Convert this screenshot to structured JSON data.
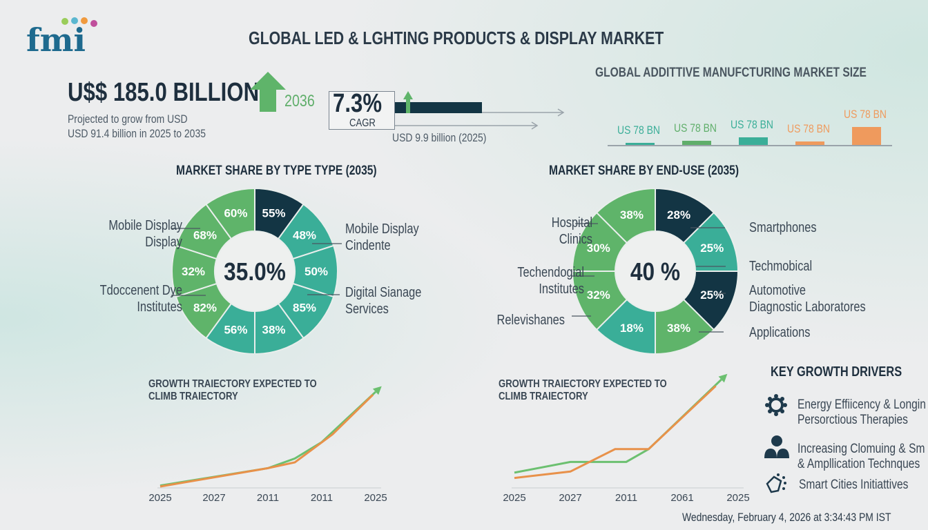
{
  "logo": {
    "text": "fmi",
    "dot_colors": [
      "#9acd5a",
      "#5bb7d0",
      "#f09a3e",
      "#c04f9c"
    ]
  },
  "header": {
    "title": "GLOBAL LED & LGHTING PRODUCTS & DISPLAY MARKET"
  },
  "headline": {
    "value": "U$$ 185.0 BILLION",
    "year": "2036",
    "projection": [
      "Projected to grow from USD",
      "USD 91.4 billion in 2025 to 2035"
    ]
  },
  "cagr": {
    "value": "7.3%",
    "label": "CAGR",
    "base": "USD 9.9 billion (2025)"
  },
  "market_size": {
    "title": "GLOBAL ADDITTIVE MANUFCTURING MARKET SIZE",
    "bars": [
      {
        "label": "US 78 BN",
        "color": "#3aae98",
        "level": 0.12
      },
      {
        "label": "US 78 BN",
        "color": "#5fae6a",
        "level": 0.2
      },
      {
        "label": "US 78 BN",
        "color": "#3aae98",
        "level": 0.38
      },
      {
        "label": "US 78 BN",
        "color": "#ef9a5d",
        "level": 0.18
      },
      {
        "label": "US 78 BN",
        "color": "#ef9a5d",
        "level": 0.92
      }
    ]
  },
  "colors": {
    "dark": "#133544",
    "green": "#5fb46a",
    "teal": "#3aae98",
    "orange": "#e8914a",
    "text": "#1e2f3e"
  },
  "chart_data": [
    {
      "type": "pie",
      "title": "MARKET SHARE BY TYPE TYPE (2035)",
      "center": "35.0%",
      "slices": [
        {
          "label": "55%",
          "color": "dark"
        },
        {
          "label": "48%",
          "color": "teal"
        },
        {
          "label": "50%",
          "color": "teal"
        },
        {
          "label": "85%",
          "color": "teal"
        },
        {
          "label": "38%",
          "color": "teal"
        },
        {
          "label": "56%",
          "color": "teal"
        },
        {
          "label": "82%",
          "color": "green"
        },
        {
          "label": "32%",
          "color": "green"
        },
        {
          "label": "68%",
          "color": "green"
        },
        {
          "label": "60%",
          "color": "green"
        }
      ],
      "callouts": [
        "Mobile Display\nDisplay",
        "Tdoccenent Dye\nInstitutes",
        "Mobile Display\nCindente",
        "Digital Sianage\nServices"
      ]
    },
    {
      "type": "pie",
      "title": "MARKET SHARE BY END-USE (2035)",
      "center": "40 %",
      "slices": [
        {
          "label": "28%",
          "color": "dark"
        },
        {
          "label": "25%",
          "color": "teal"
        },
        {
          "label": "25%",
          "color": "dark"
        },
        {
          "label": "38%",
          "color": "green"
        },
        {
          "label": "18%",
          "color": "teal"
        },
        {
          "label": "32%",
          "color": "green"
        },
        {
          "label": "30%",
          "color": "green"
        },
        {
          "label": "38%",
          "color": "green"
        }
      ],
      "callouts": [
        "Hospital\nClinics",
        "Techendogial\nInstitutes",
        "Relevishanes",
        "Smartphones",
        "Techmobical",
        "Automotive\nDiagnostic Laboratores",
        "Applications"
      ]
    },
    {
      "type": "line",
      "title": "GROWTH TRAIECTORY EXPECTED TO\nCLIMB TRAIECTORY",
      "x_ticks": [
        "2025",
        "2027",
        "2011",
        "2011",
        "2025"
      ],
      "series": [
        {
          "color": "#6cc070",
          "points": [
            [
              0,
              1
            ],
            [
              2,
              19
            ],
            [
              2.5,
              29
            ],
            [
              3,
              46
            ],
            [
              4,
              98
            ]
          ]
        },
        {
          "color": "#e8914a",
          "points": [
            [
              0,
              0
            ],
            [
              2,
              19
            ],
            [
              2.5,
              25
            ],
            [
              3.2,
              54
            ],
            [
              3.95,
              95
            ]
          ]
        }
      ]
    },
    {
      "type": "line",
      "title": "GROWTH TRAIECTORY EXPECTED TO\nCLIMB TRAIECTORY",
      "x_ticks": [
        "2025",
        "2027",
        "2011",
        "2061",
        "2025"
      ],
      "series": [
        {
          "color": "#6cc070",
          "points": [
            [
              0,
              13
            ],
            [
              1,
              23
            ],
            [
              2,
              23
            ],
            [
              2.4,
              35
            ],
            [
              3.7,
              100
            ]
          ]
        },
        {
          "color": "#e8914a",
          "points": [
            [
              0,
              8
            ],
            [
              1,
              14
            ],
            [
              1.8,
              35
            ],
            [
              2.4,
              35
            ],
            [
              3.6,
              94
            ]
          ]
        }
      ]
    }
  ],
  "drivers": {
    "title": "KEY GROWTH DRIVERS",
    "items": [
      {
        "icon": "gear-icon",
        "lines": [
          "Energy Effiicency & Longin",
          "Persorctious Therapies"
        ]
      },
      {
        "icon": "users-icon",
        "lines": [
          "Increasing Clomuing & Sm",
          "& Ampllication Technques"
        ]
      },
      {
        "icon": "smart-city-icon",
        "lines": [
          "Smart Cities Initiattives"
        ]
      }
    ]
  },
  "timestamp": "Wednesday, February 4, 2026 at 3:34:43 PM IST"
}
